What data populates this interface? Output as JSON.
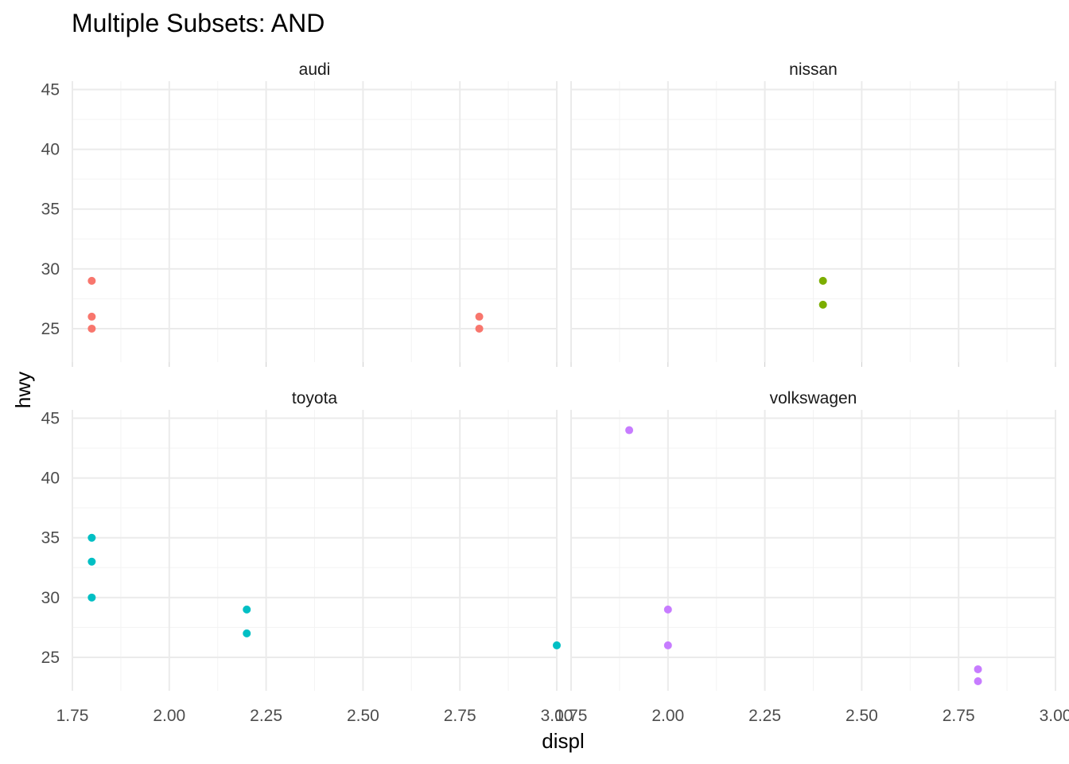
{
  "chart_data": {
    "type": "scatter",
    "title": "Multiple Subsets: AND",
    "xlabel": "displ",
    "ylabel": "hwy",
    "xlim": [
      1.75,
      3.0
    ],
    "ylim": [
      22.2,
      45.7
    ],
    "x_ticks": [
      1.75,
      2.0,
      2.25,
      2.5,
      2.75,
      3.0
    ],
    "x_tick_labels": [
      "1.75",
      "2.00",
      "2.25",
      "2.50",
      "2.75",
      "3.00"
    ],
    "y_ticks": [
      25,
      30,
      35,
      40,
      45
    ],
    "y_tick_labels": [
      "25",
      "30",
      "35",
      "40",
      "45"
    ],
    "grid": true,
    "legend": "none",
    "facets": [
      {
        "name": "audi",
        "color": "#F8766D",
        "points": [
          {
            "x": 1.8,
            "y": 29
          },
          {
            "x": 1.8,
            "y": 26
          },
          {
            "x": 1.8,
            "y": 25
          },
          {
            "x": 2.8,
            "y": 26
          },
          {
            "x": 2.8,
            "y": 25
          }
        ]
      },
      {
        "name": "nissan",
        "color": "#7CAE00",
        "points": [
          {
            "x": 2.4,
            "y": 29
          },
          {
            "x": 2.4,
            "y": 27
          }
        ]
      },
      {
        "name": "toyota",
        "color": "#00BFC4",
        "points": [
          {
            "x": 1.8,
            "y": 35
          },
          {
            "x": 1.8,
            "y": 33
          },
          {
            "x": 1.8,
            "y": 30
          },
          {
            "x": 2.2,
            "y": 29
          },
          {
            "x": 2.2,
            "y": 27
          },
          {
            "x": 3.0,
            "y": 26
          }
        ]
      },
      {
        "name": "volkswagen",
        "color": "#C77CFF",
        "points": [
          {
            "x": 1.9,
            "y": 44
          },
          {
            "x": 2.0,
            "y": 29
          },
          {
            "x": 2.0,
            "y": 26
          },
          {
            "x": 2.8,
            "y": 24
          },
          {
            "x": 2.8,
            "y": 23
          }
        ]
      }
    ]
  }
}
